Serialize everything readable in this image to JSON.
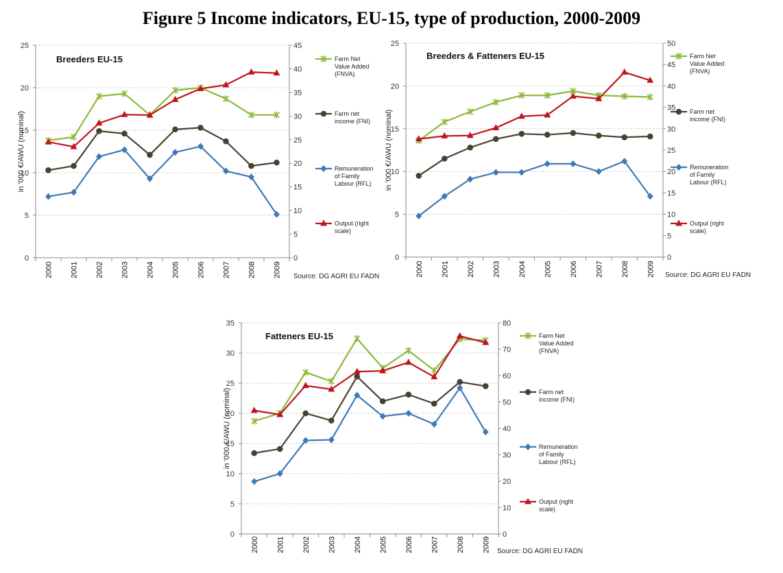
{
  "figure_title": "Figure 5 Income indicators, EU-15, type of production, 2000-2009",
  "colors": {
    "fnva": "#8db83a",
    "fni": "#4a4030",
    "rfl": "#3f79b6",
    "output": "#c0141c",
    "grid": "#c9c9c9",
    "axis": "#888888"
  },
  "legend_labels": {
    "fnva": [
      "Farm Net",
      "Value Added",
      "(FNVA)"
    ],
    "fni": [
      "Farm net",
      "income (FNI)"
    ],
    "rfl": [
      "Remuneration",
      "of Family",
      "Labour (RFL)"
    ],
    "output": [
      "Output (right",
      "scale)"
    ]
  },
  "chart_data": [
    {
      "type": "line",
      "title": "Breeders EU-15",
      "ylabel": "in '000 €/AWU (nominal)",
      "source": "Source: DG AGRI EU FADN",
      "x": [
        "2000",
        "2001",
        "2002",
        "2003",
        "2004",
        "2005",
        "2006",
        "2007",
        "2008",
        "2009"
      ],
      "ylim": [
        0,
        25
      ],
      "yticks": [
        0,
        5,
        10,
        15,
        20,
        25
      ],
      "y2lim": [
        0,
        45
      ],
      "y2ticks": [
        0,
        5,
        10,
        15,
        20,
        25,
        30,
        35,
        40,
        45
      ],
      "series": [
        {
          "name": "Farm Net Value Added (FNVA)",
          "key": "fnva",
          "axis": "left",
          "marker": "x",
          "values": [
            13.8,
            14.2,
            19.0,
            19.3,
            16.8,
            19.7,
            20.0,
            18.7,
            16.8,
            16.8
          ]
        },
        {
          "name": "Farm net income (FNI)",
          "key": "fni",
          "axis": "left",
          "marker": "circle",
          "values": [
            10.3,
            10.8,
            14.9,
            14.6,
            12.1,
            15.1,
            15.3,
            13.7,
            10.8,
            11.2
          ]
        },
        {
          "name": "Remuneration of Family Labour (RFL)",
          "key": "rfl",
          "axis": "left",
          "marker": "diamond",
          "values": [
            7.2,
            7.7,
            11.9,
            12.7,
            9.3,
            12.4,
            13.1,
            10.2,
            9.5,
            5.1
          ]
        },
        {
          "name": "Output (right scale)",
          "key": "output",
          "axis": "right",
          "marker": "triangle",
          "values": [
            24.5,
            23.5,
            28.5,
            30.3,
            30.2,
            33.5,
            35.8,
            36.6,
            39.3,
            39.1
          ]
        }
      ]
    },
    {
      "type": "line",
      "title": "Breeders & Fatteners EU-15",
      "ylabel": "in '000 €/AWU (nominal)",
      "source": "Source: DG AGRI EU FADN",
      "x": [
        "2000",
        "2001",
        "2002",
        "2003",
        "2004",
        "2005",
        "2006",
        "2007",
        "2008",
        "2009"
      ],
      "ylim": [
        0,
        25
      ],
      "yticks": [
        0,
        5,
        10,
        15,
        20,
        25
      ],
      "y2lim": [
        0,
        50
      ],
      "y2ticks": [
        0,
        5,
        10,
        15,
        20,
        25,
        30,
        35,
        40,
        45,
        50
      ],
      "series": [
        {
          "name": "Farm Net Value Added (FNVA)",
          "key": "fnva",
          "axis": "left",
          "marker": "x",
          "values": [
            13.6,
            15.8,
            17.0,
            18.1,
            18.9,
            18.9,
            19.4,
            18.9,
            18.8,
            18.7
          ]
        },
        {
          "name": "Farm net income (FNI)",
          "key": "fni",
          "axis": "left",
          "marker": "circle",
          "values": [
            9.5,
            11.5,
            12.8,
            13.8,
            14.4,
            14.3,
            14.5,
            14.2,
            14.0,
            14.1
          ]
        },
        {
          "name": "Remuneration of Family Labour (RFL)",
          "key": "rfl",
          "axis": "left",
          "marker": "diamond",
          "values": [
            4.8,
            7.1,
            9.1,
            9.9,
            9.9,
            10.9,
            10.9,
            10.0,
            11.2,
            7.1
          ]
        },
        {
          "name": "Output (right scale)",
          "key": "output",
          "axis": "right",
          "marker": "triangle",
          "values": [
            27.6,
            28.3,
            28.4,
            30.2,
            32.9,
            33.2,
            37.6,
            37.0,
            43.2,
            41.3
          ]
        }
      ]
    },
    {
      "type": "line",
      "title": "Fatteners EU-15",
      "ylabel": "in '000 €/AWU (nominal)",
      "source": "Source: DG AGRI EU FADN",
      "x": [
        "2000",
        "2001",
        "2002",
        "2003",
        "2004",
        "2005",
        "2006",
        "2007",
        "2008",
        "2009"
      ],
      "ylim": [
        0,
        35
      ],
      "yticks": [
        0,
        5,
        10,
        15,
        20,
        25,
        30,
        35
      ],
      "y2lim": [
        0,
        80
      ],
      "y2ticks": [
        0,
        10,
        20,
        30,
        40,
        50,
        60,
        70,
        80
      ],
      "series": [
        {
          "name": "Farm Net Value Added (FNVA)",
          "key": "fnva",
          "axis": "left",
          "marker": "x",
          "values": [
            18.7,
            20.0,
            26.8,
            25.3,
            32.4,
            27.5,
            30.4,
            27.1,
            32.3,
            32.1
          ]
        },
        {
          "name": "Farm net income (FNI)",
          "key": "fni",
          "axis": "left",
          "marker": "circle",
          "values": [
            13.4,
            14.1,
            20.0,
            18.8,
            26.1,
            22.0,
            23.1,
            21.6,
            25.2,
            24.5
          ]
        },
        {
          "name": "Remuneration of Family Labour (RFL)",
          "key": "rfl",
          "axis": "left",
          "marker": "diamond",
          "values": [
            8.7,
            10.0,
            15.5,
            15.6,
            23.0,
            19.5,
            20.0,
            18.2,
            24.2,
            16.9
          ]
        },
        {
          "name": "Output (right scale)",
          "key": "output",
          "axis": "right",
          "marker": "triangle",
          "values": [
            46.8,
            45.2,
            56.2,
            54.8,
            61.5,
            61.8,
            65.0,
            59.5,
            75.0,
            72.5
          ]
        }
      ]
    }
  ]
}
